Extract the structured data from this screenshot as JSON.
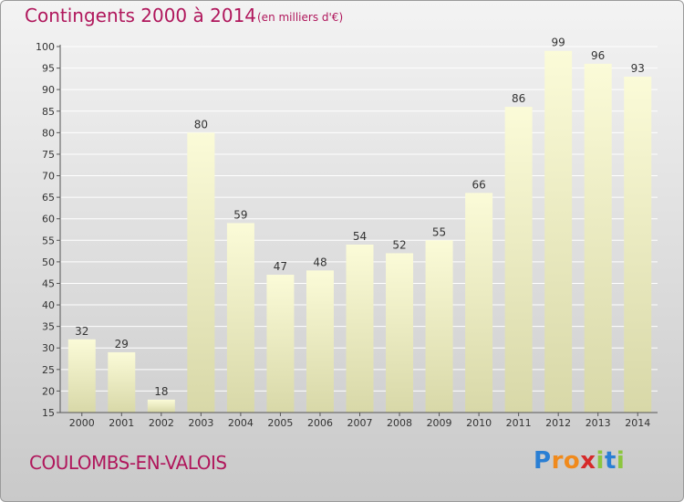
{
  "header": {
    "title": "Contingents 2000 à 2014",
    "subtitle": "(en milliers d'€)"
  },
  "footer": {
    "commune": "COULOMBS-EN-VALOIS",
    "logo_letters": [
      "P",
      "r",
      "o",
      "x",
      "i",
      "t",
      "i"
    ],
    "logo_colors": [
      "#2a7fd4",
      "#f08a1c",
      "#f08a1c",
      "#d62a2a",
      "#8cc63e",
      "#2a7fd4",
      "#8cc63e"
    ]
  },
  "colors": {
    "title": "#b0175c",
    "bar_top": "#fbfbd8",
    "bar_bottom": "#d8d8a8",
    "grid": "#ffffff"
  },
  "chart_data": {
    "type": "bar",
    "categories": [
      "2000",
      "2001",
      "2002",
      "2003",
      "2004",
      "2005",
      "2006",
      "2007",
      "2008",
      "2009",
      "2010",
      "2011",
      "2012",
      "2013",
      "2014"
    ],
    "values": [
      32,
      29,
      18,
      80,
      59,
      47,
      48,
      54,
      52,
      55,
      66,
      86,
      99,
      96,
      93
    ],
    "ylim": [
      15,
      100
    ],
    "yticks": [
      15,
      20,
      25,
      30,
      35,
      40,
      45,
      50,
      55,
      60,
      65,
      70,
      75,
      80,
      85,
      90,
      95,
      100
    ],
    "grid": true,
    "legend": "none"
  }
}
